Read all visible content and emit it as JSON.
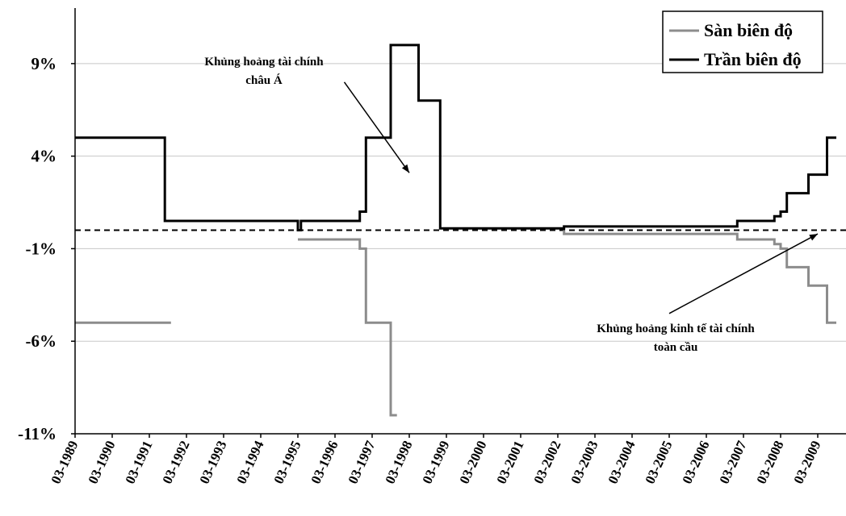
{
  "chart_data": {
    "type": "line",
    "title": "",
    "xlabel": "",
    "ylabel": "",
    "x_range": [
      "1989-03",
      "2009-09"
    ],
    "ylim": [
      -11,
      12
    ],
    "y_ticks": [
      {
        "value": 9,
        "label": "9%"
      },
      {
        "value": 4,
        "label": "4%"
      },
      {
        "value": -1,
        "label": "-1%"
      },
      {
        "value": -6,
        "label": "-6%"
      },
      {
        "value": -11,
        "label": "-11%"
      }
    ],
    "x_ticks": [
      "03-1989",
      "03-1990",
      "03-1991",
      "03-1992",
      "03-1993",
      "03-1994",
      "03-1995",
      "03-1996",
      "03-1997",
      "03-1998",
      "03-1999",
      "03-2000",
      "03-2001",
      "03-2002",
      "03-2003",
      "03-2004",
      "03-2005",
      "03-2006",
      "03-2007",
      "03-2008",
      "03-2009"
    ],
    "grid": "horizontal",
    "legend_position": "top-right",
    "reference_line": {
      "value": 0,
      "style": "dashed"
    },
    "series": [
      {
        "name": "Sàn biên độ",
        "color": "#8c8c8c",
        "step": true,
        "segments": [
          [
            [
              "1989-03",
              -5
            ],
            [
              "1991-10",
              -5
            ]
          ],
          [
            [
              "1995-03",
              -0.5
            ],
            [
              "1996-11",
              -0.5
            ],
            [
              "1996-11",
              -1
            ],
            [
              "1997-01",
              -1
            ],
            [
              "1997-01",
              -5
            ],
            [
              "1997-09",
              -5
            ],
            [
              "1997-09",
              -10
            ],
            [
              "1997-11",
              -10
            ]
          ]
        ],
        "points_extra": [
          [
            [
              "2002-05",
              0
            ],
            [
              "2002-05",
              -0.2
            ],
            [
              "2007-01",
              -0.2
            ],
            [
              "2007-01",
              -0.5
            ],
            [
              "2008-01",
              -0.5
            ],
            [
              "2008-01",
              -0.75
            ],
            [
              "2008-03",
              -0.75
            ],
            [
              "2008-03",
              -1
            ],
            [
              "2008-05",
              -1
            ],
            [
              "2008-05",
              -2
            ],
            [
              "2008-12",
              -2
            ],
            [
              "2008-12",
              -3
            ],
            [
              "2009-06",
              -3
            ],
            [
              "2009-06",
              -5
            ],
            [
              "2009-09",
              -5
            ]
          ]
        ]
      },
      {
        "name": "Trần biên độ",
        "color": "#000000",
        "step": true,
        "segments": [
          [
            [
              "1989-03",
              5
            ],
            [
              "1991-08",
              5
            ],
            [
              "1991-08",
              0.5
            ],
            [
              "1995-03",
              0.5
            ],
            [
              "1995-03",
              0
            ],
            [
              "1995-04",
              0
            ],
            [
              "1995-04",
              0.5
            ],
            [
              "1996-11",
              0.5
            ],
            [
              "1996-11",
              1
            ],
            [
              "1997-01",
              1
            ],
            [
              "1997-01",
              5
            ],
            [
              "1997-09",
              5
            ],
            [
              "1997-09",
              10
            ],
            [
              "1998-06",
              10
            ],
            [
              "1998-06",
              7
            ],
            [
              "1999-01",
              7
            ],
            [
              "1999-01",
              0.1
            ],
            [
              "2002-05",
              0.1
            ],
            [
              "2002-05",
              0.2
            ],
            [
              "2007-01",
              0.2
            ],
            [
              "2007-01",
              0.5
            ],
            [
              "2008-01",
              0.5
            ],
            [
              "2008-01",
              0.75
            ],
            [
              "2008-03",
              0.75
            ],
            [
              "2008-03",
              1
            ],
            [
              "2008-05",
              1
            ],
            [
              "2008-05",
              2
            ],
            [
              "2008-12",
              2
            ],
            [
              "2008-12",
              3
            ],
            [
              "2009-06",
              3
            ],
            [
              "2009-06",
              5
            ],
            [
              "2009-09",
              5
            ]
          ]
        ]
      }
    ],
    "annotations": [
      {
        "lines": [
          "Khủng hoảng tài chính",
          "châu Á"
        ],
        "arrow_from": [
          "1996-06",
          8.0
        ],
        "arrow_to": [
          "1998-03",
          3.1
        ]
      },
      {
        "lines": [
          "Khủng hoảng kinh tế tài chính",
          "toàn cầu"
        ],
        "arrow_from": [
          "2005-03",
          -4.5
        ],
        "arrow_to": [
          "2009-03",
          -0.2
        ]
      }
    ]
  }
}
